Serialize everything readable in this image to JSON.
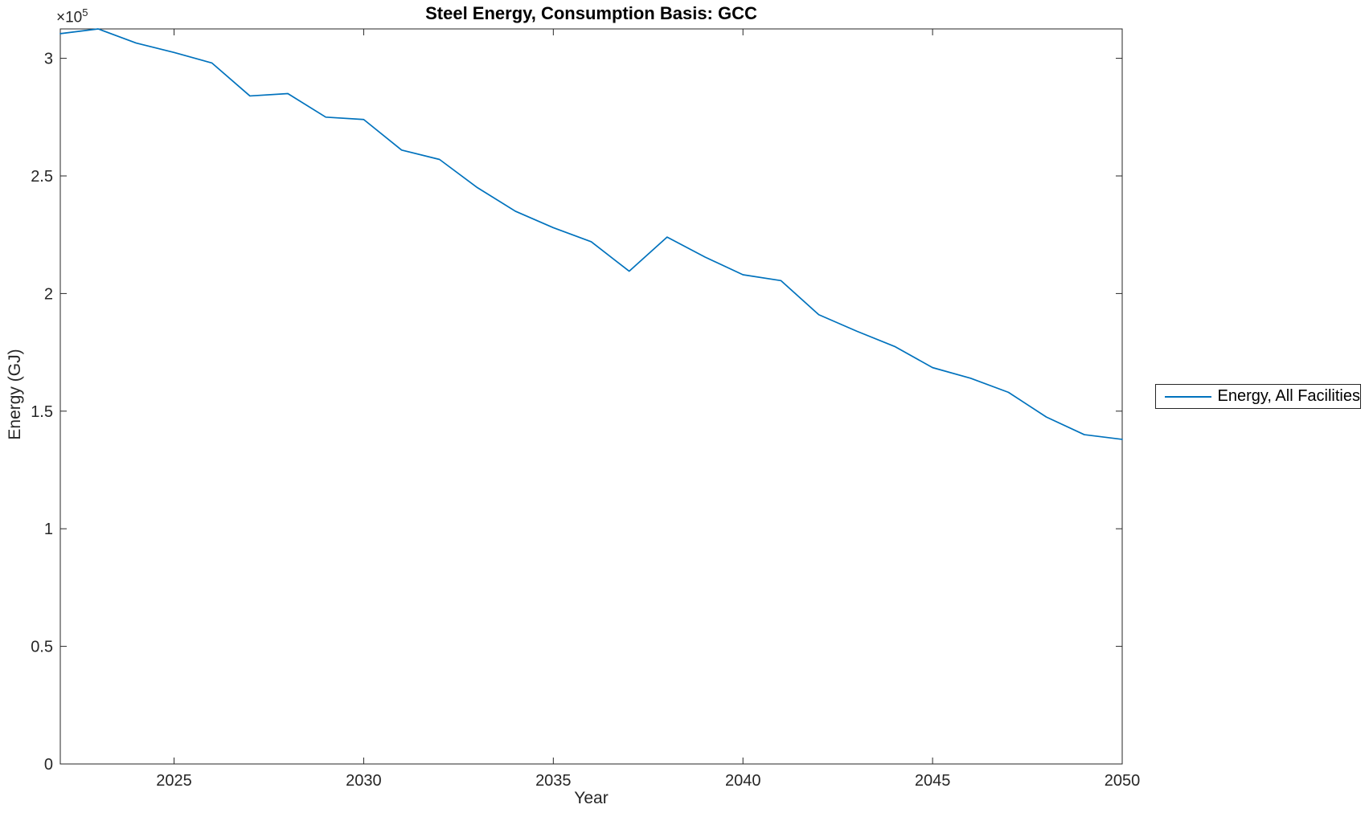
{
  "figure": {
    "title": "Steel Energy, Consumption Basis: GCC",
    "xlabel": "Year",
    "ylabel": "Energy (GJ)",
    "y_multiplier": {
      "base": "×10",
      "exp": "5"
    },
    "legend": {
      "label": "Energy, All Facilities"
    }
  },
  "colors": {
    "line": "#0072BD",
    "axis": "#262626",
    "background": "#ffffff"
  },
  "chart_data": {
    "type": "line",
    "title": "Steel Energy, Consumption Basis: GCC",
    "xlabel": "Year",
    "ylabel": "Energy (GJ)",
    "y_axis_multiplier": "×10^5",
    "grid": false,
    "box": true,
    "tick_direction": "in",
    "legend_entries": [
      "Energy, All Facilities"
    ],
    "legend_position": "right-outside",
    "xlim": [
      2022,
      2050
    ],
    "ylim": [
      0,
      312500
    ],
    "xticks": [
      2025,
      2030,
      2035,
      2040,
      2045,
      2050
    ],
    "xtick_labels": [
      "2025",
      "2030",
      "2035",
      "2040",
      "2045",
      "2050"
    ],
    "ytick_values": [
      0,
      50000,
      100000,
      150000,
      200000,
      250000,
      300000
    ],
    "ytick_labels": [
      "0",
      "0.5",
      "1",
      "1.5",
      "2",
      "2.5",
      "3"
    ],
    "series": [
      {
        "name": "Energy, All Facilities",
        "color": "#0072BD",
        "x": [
          2022,
          2023,
          2024,
          2025,
          2026,
          2027,
          2028,
          2029,
          2030,
          2031,
          2032,
          2033,
          2034,
          2035,
          2036,
          2037,
          2038,
          2039,
          2040,
          2041,
          2042,
          2043,
          2044,
          2045,
          2046,
          2047,
          2048,
          2049,
          2050
        ],
        "y": [
          310500,
          312500,
          306500,
          302500,
          298000,
          284000,
          285000,
          275000,
          274000,
          261000,
          257000,
          245000,
          235000,
          228000,
          222000,
          209500,
          224000,
          215500,
          208000,
          205500,
          191000,
          184000,
          177500,
          168500,
          164000,
          158000,
          147500,
          140000,
          138000
        ]
      }
    ]
  }
}
